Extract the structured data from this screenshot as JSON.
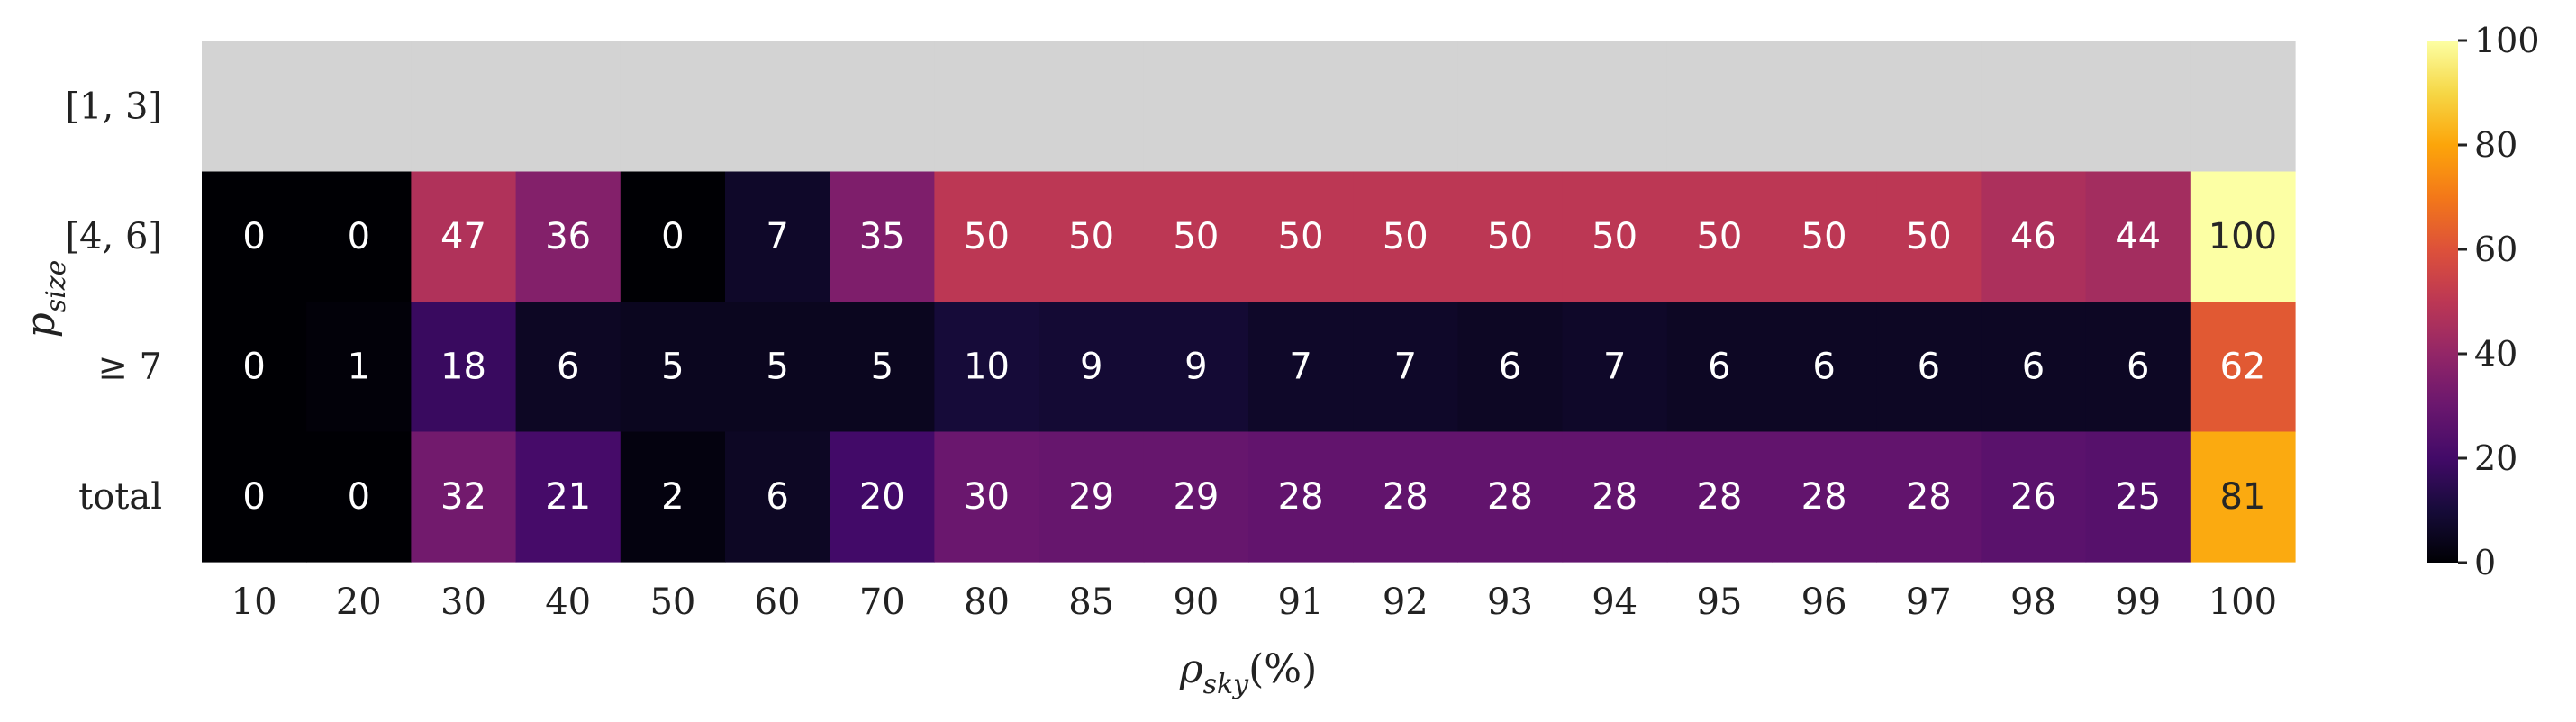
{
  "chart_data": {
    "type": "heatmap",
    "x_categories": [
      "10",
      "20",
      "30",
      "40",
      "50",
      "60",
      "70",
      "80",
      "85",
      "90",
      "91",
      "92",
      "93",
      "94",
      "95",
      "96",
      "97",
      "98",
      "99",
      "100"
    ],
    "y_categories": [
      "[1, 3]",
      "[4, 6]",
      "≥ 7",
      "total"
    ],
    "values": [
      [
        null,
        null,
        null,
        null,
        null,
        null,
        null,
        null,
        null,
        null,
        null,
        null,
        null,
        null,
        null,
        null,
        null,
        null,
        null,
        null
      ],
      [
        0,
        0,
        47,
        36,
        0,
        7,
        35,
        50,
        50,
        50,
        50,
        50,
        50,
        50,
        50,
        50,
        50,
        46,
        44,
        100
      ],
      [
        0,
        1,
        18,
        6,
        5,
        5,
        5,
        10,
        9,
        9,
        7,
        7,
        6,
        7,
        6,
        6,
        6,
        6,
        6,
        62
      ],
      [
        0,
        0,
        32,
        21,
        2,
        6,
        20,
        30,
        29,
        29,
        28,
        28,
        28,
        28,
        28,
        28,
        28,
        26,
        25,
        81
      ]
    ],
    "missing_color": "#d3d3d3",
    "xlabel": {
      "main": "ρ",
      "sub": "sky",
      "suffix": "(%)"
    },
    "ylabel": {
      "main": "p",
      "sub": "size"
    },
    "colormap": "inferno",
    "colorbar": {
      "min": 0,
      "max": 100,
      "ticks": [
        "0",
        "20",
        "40",
        "60",
        "80",
        "100"
      ]
    }
  }
}
